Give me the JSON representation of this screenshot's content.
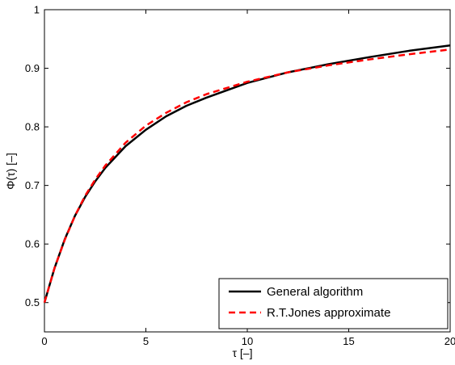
{
  "chart_data": {
    "type": "line",
    "xlabel": "τ  [–]",
    "ylabel": "Φ(τ)   [–]",
    "xlim": [
      0,
      20
    ],
    "ylim": [
      0.45,
      1
    ],
    "xticks": [
      0,
      5,
      10,
      15,
      20
    ],
    "xtick_labels": [
      "0",
      "5",
      "10",
      "15",
      "20"
    ],
    "yticks": [
      0.5,
      0.6,
      0.7,
      0.8,
      0.9,
      1
    ],
    "ytick_labels": [
      "0.5",
      "0.6",
      "0.7",
      "0.8",
      "0.9",
      "1"
    ],
    "grid": false,
    "legend_position": "bottom-right",
    "series": [
      {
        "name": "General algorithm",
        "color": "#000000",
        "style": "solid",
        "x": [
          0,
          0.5,
          1,
          1.5,
          2,
          2.5,
          3,
          4,
          5,
          6,
          7,
          8,
          10,
          12,
          14,
          16,
          18,
          20
        ],
        "y": [
          0.5,
          0.559,
          0.608,
          0.648,
          0.68,
          0.707,
          0.73,
          0.767,
          0.795,
          0.818,
          0.836,
          0.85,
          0.875,
          0.893,
          0.907,
          0.919,
          0.93,
          0.939
        ]
      },
      {
        "name": "R.T.Jones approximate",
        "color": "#ff0000",
        "style": "dashed",
        "x": [
          0,
          0.5,
          1,
          1.5,
          2,
          2.5,
          3,
          4,
          5,
          6,
          7,
          8,
          10,
          12,
          14,
          16,
          18,
          20
        ],
        "y": [
          0.5,
          0.559,
          0.607,
          0.648,
          0.682,
          0.71,
          0.734,
          0.773,
          0.802,
          0.824,
          0.842,
          0.856,
          0.877,
          0.893,
          0.905,
          0.915,
          0.924,
          0.932
        ]
      }
    ]
  }
}
